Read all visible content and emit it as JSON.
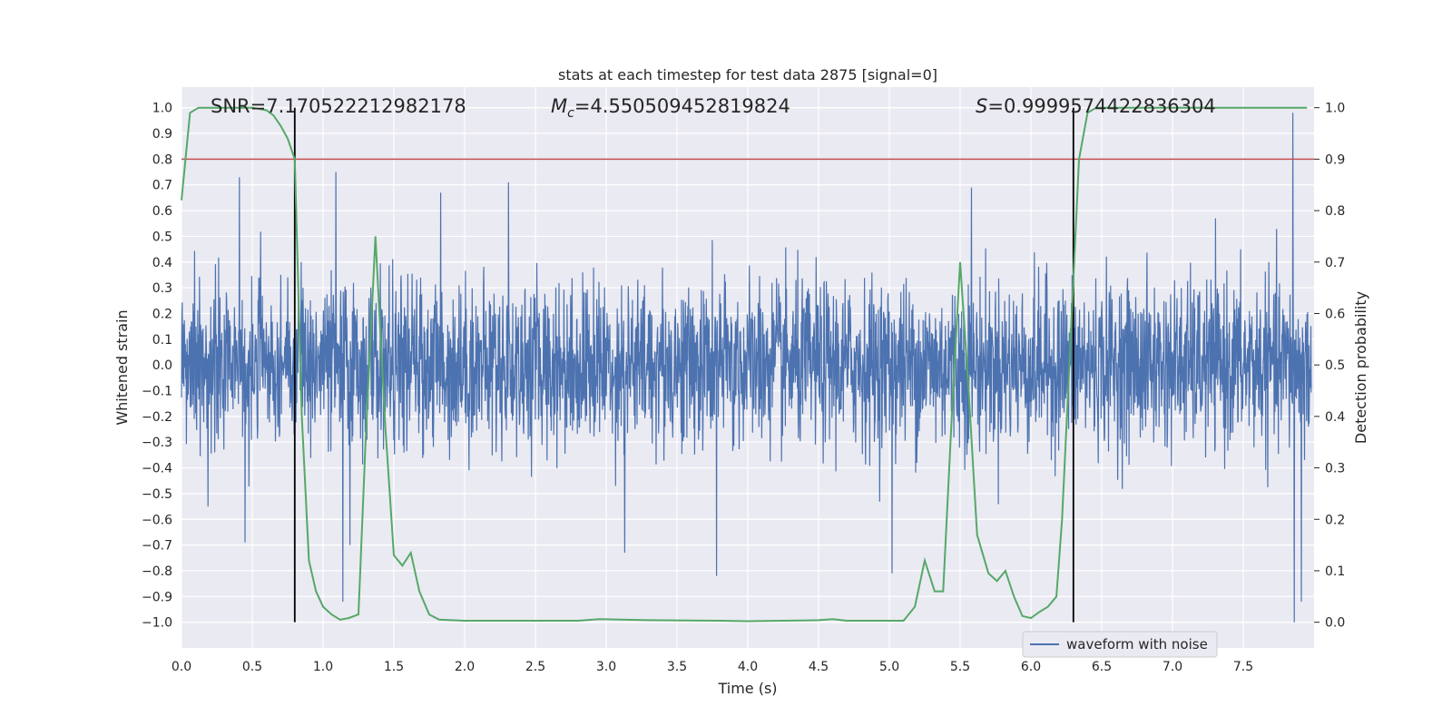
{
  "chart_data": {
    "type": "line",
    "title": "stats at each timestep for test data 2875 [signal=0]",
    "xlabel": "Time (s)",
    "ylabel": "Whitened strain",
    "y2label": "Detection probability",
    "xlim": [
      0.0,
      8.0
    ],
    "ylim": [
      -1.1,
      1.08
    ],
    "y2lim": [
      -0.05,
      1.04
    ],
    "xticks": [
      "0.0",
      "0.5",
      "1.0",
      "1.5",
      "2.0",
      "2.5",
      "3.0",
      "3.5",
      "4.0",
      "4.5",
      "5.0",
      "5.5",
      "6.0",
      "6.5",
      "7.0",
      "7.5"
    ],
    "yticks": [
      "1.0",
      "0.9",
      "0.8",
      "0.7",
      "0.6",
      "0.5",
      "0.4",
      "0.3",
      "0.2",
      "0.1",
      "0.0",
      "-0.1",
      "-0.2",
      "-0.3",
      "-0.4",
      "-0.5",
      "-0.6",
      "-0.7",
      "-0.8",
      "-0.9",
      "-1.0"
    ],
    "y2ticks": [
      "0.0",
      "0.1",
      "0.2",
      "0.3",
      "0.4",
      "0.5",
      "0.6",
      "0.7",
      "0.8",
      "0.9",
      "1.0"
    ],
    "annotations": {
      "snr_label": "SNR=7.170522212982178",
      "mc_symbol": "M",
      "mc_sub": "c",
      "mc_value": "=4.550509452819824",
      "s_symbol": "S",
      "s_value": "=0.9999574422836304"
    },
    "threshold": {
      "axis": "right",
      "value": 0.9,
      "color": "#c44e52"
    },
    "vlines": [
      {
        "x": 0.8,
        "y_from": -1.0,
        "y_to": 1.0,
        "color": "#000000"
      },
      {
        "x": 6.3,
        "y_from": -1.0,
        "y_to": 1.0,
        "color": "#000000"
      }
    ],
    "series": [
      {
        "name": "waveform with noise",
        "axis": "left",
        "color": "#4c72b0",
        "style": "dense noise",
        "typical_envelope": 0.4,
        "peaks": [
          {
            "x": 0.41,
            "y": 0.73
          },
          {
            "x": 0.45,
            "y": -0.69
          },
          {
            "x": 1.09,
            "y": 0.75
          },
          {
            "x": 1.14,
            "y": -0.92
          },
          {
            "x": 1.19,
            "y": -0.7
          },
          {
            "x": 1.83,
            "y": 0.67
          },
          {
            "x": 2.31,
            "y": 0.71
          },
          {
            "x": 3.13,
            "y": -0.73
          },
          {
            "x": 3.78,
            "y": -0.82
          },
          {
            "x": 5.02,
            "y": -0.81
          },
          {
            "x": 5.58,
            "y": 0.69
          },
          {
            "x": 7.85,
            "y": 0.98
          },
          {
            "x": 7.86,
            "y": -1.0
          },
          {
            "x": 7.91,
            "y": -0.92
          }
        ]
      },
      {
        "name": "detection probability",
        "axis": "right",
        "color": "#55a868",
        "x": [
          0.0,
          0.06,
          0.12,
          0.3,
          0.5,
          0.6,
          0.65,
          0.7,
          0.75,
          0.8,
          0.85,
          0.9,
          0.95,
          1.0,
          1.06,
          1.12,
          1.18,
          1.25,
          1.3,
          1.37,
          1.44,
          1.5,
          1.56,
          1.62,
          1.68,
          1.75,
          1.82,
          2.0,
          2.5,
          2.8,
          2.95,
          3.3,
          3.8,
          4.0,
          4.5,
          4.6,
          4.7,
          5.1,
          5.18,
          5.25,
          5.32,
          5.38,
          5.45,
          5.5,
          5.56,
          5.62,
          5.7,
          5.76,
          5.82,
          5.88,
          5.94,
          6.0,
          6.06,
          6.12,
          6.18,
          6.22,
          6.28,
          6.34,
          6.4,
          6.46,
          6.52,
          7.0,
          7.5,
          7.95
        ],
        "y": [
          0.82,
          0.99,
          1.0,
          1.0,
          1.0,
          0.995,
          0.985,
          0.965,
          0.94,
          0.9,
          0.4,
          0.12,
          0.06,
          0.03,
          0.015,
          0.005,
          0.008,
          0.015,
          0.35,
          0.75,
          0.38,
          0.13,
          0.11,
          0.135,
          0.06,
          0.015,
          0.005,
          0.003,
          0.003,
          0.003,
          0.006,
          0.004,
          0.003,
          0.002,
          0.004,
          0.006,
          0.003,
          0.003,
          0.03,
          0.12,
          0.06,
          0.06,
          0.45,
          0.7,
          0.45,
          0.17,
          0.095,
          0.08,
          0.1,
          0.05,
          0.012,
          0.008,
          0.02,
          0.03,
          0.05,
          0.2,
          0.55,
          0.9,
          0.99,
          1.0,
          1.0,
          1.0,
          1.0,
          1.0
        ]
      }
    ],
    "legend": {
      "placement": "bottom-right",
      "entries": [
        "waveform with noise"
      ]
    }
  }
}
